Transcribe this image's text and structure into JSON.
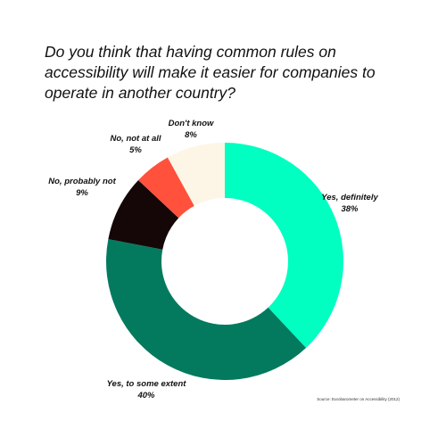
{
  "chart_data": {
    "type": "pie",
    "title": "Do you think that having common rules on accessibility will make it easier for companies to operate in another country?",
    "source": "Source: Eurobarometer on Accessibility (2012)",
    "legend": "none",
    "slices": [
      {
        "label": "Yes, definitely",
        "value": 38,
        "value_label": "38%",
        "color": "#00ffc0"
      },
      {
        "label": "Yes, to some extent",
        "value": 40,
        "value_label": "40%",
        "color": "#037a5e"
      },
      {
        "label": "No, probably not",
        "value": 9,
        "value_label": "9%",
        "color": "#150607"
      },
      {
        "label": "No, not at all",
        "value": 5,
        "value_label": "5%",
        "color": "#ff513c"
      },
      {
        "label": "Don't know",
        "value": 8,
        "value_label": "8%",
        "color": "#fdf6e6"
      }
    ]
  }
}
